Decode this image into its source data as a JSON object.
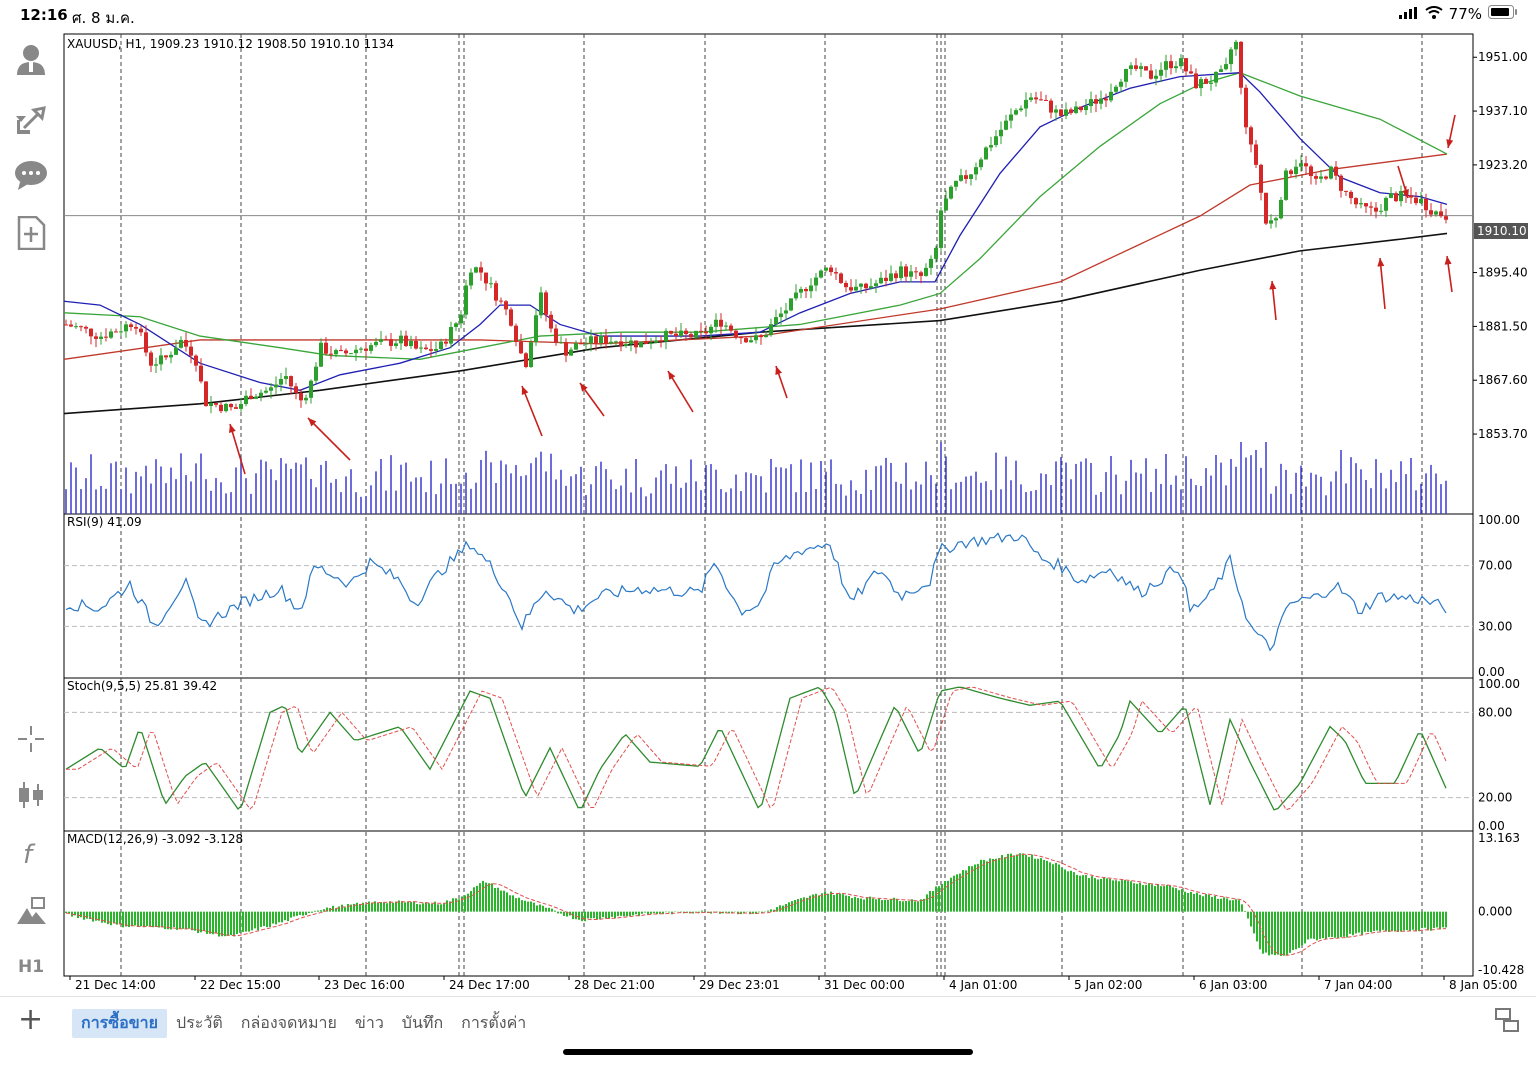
{
  "status": {
    "time": "12:16",
    "date": "ศ. 8 ม.ค.",
    "battery": "77%"
  },
  "toolbar": {
    "icons": [
      "account-icon",
      "trade-icon",
      "chat-icon",
      "new-document-icon",
      "crosshair-icon",
      "candlestick-icon",
      "function-icon",
      "objects-icon",
      "timeframe-icon"
    ],
    "timeframe_label": "H1"
  },
  "chart": {
    "symbol_info": "XAUUSD, H1, 1909.23 1910.12 1908.50 1910.10 1134",
    "current_price": "1910.10",
    "price_ticks": [
      "1951.00",
      "1937.10",
      "1923.20",
      "1910.10",
      "1895.40",
      "1881.50",
      "1867.60",
      "1853.70"
    ],
    "time_labels": [
      "21 Dec 14:00",
      "22 Dec 15:00",
      "23 Dec 16:00",
      "24 Dec 17:00",
      "28 Dec 21:00",
      "29 Dec 23:01",
      "31 Dec 00:00",
      "4 Jan 01:00",
      "5 Jan 02:00",
      "6 Jan 03:00",
      "7 Jan 04:00",
      "8 Jan 05:00"
    ],
    "colors": {
      "bull": "#2ca02c",
      "bear": "#d62728",
      "ma_blue": "#1f1fb4",
      "ma_green": "#3aa63a",
      "ma_red": "#c0392b",
      "ma_black": "#111111",
      "volume": "#3b3bd0",
      "rsi": "#2a78c7",
      "stoch_main": "#2e8b2e",
      "stoch_signal": "#e05050",
      "macd_hist": "#2bb52b",
      "macd_signal": "#e05050",
      "arrow": "#c8201c"
    }
  },
  "rsi": {
    "label": "RSI(9) 41.09",
    "ticks": [
      "100.00",
      "70.00",
      "30.00",
      "0.00"
    ]
  },
  "stoch": {
    "label": "Stoch(9,5,5) 25.81 39.42",
    "ticks": [
      "100.00",
      "80.00",
      "20.00",
      "0.00"
    ]
  },
  "macd": {
    "label": "MACD(12,26,9) -3.092 -3.128",
    "ticks": [
      "13.163",
      "0.000",
      "-10.428"
    ]
  },
  "tabs": [
    "การซื้อขาย",
    "ประวัติ",
    "กล่องจดหมาย",
    "ข่าว",
    "บันทึก",
    "การตั้งค่า"
  ],
  "active_tab": 0
}
